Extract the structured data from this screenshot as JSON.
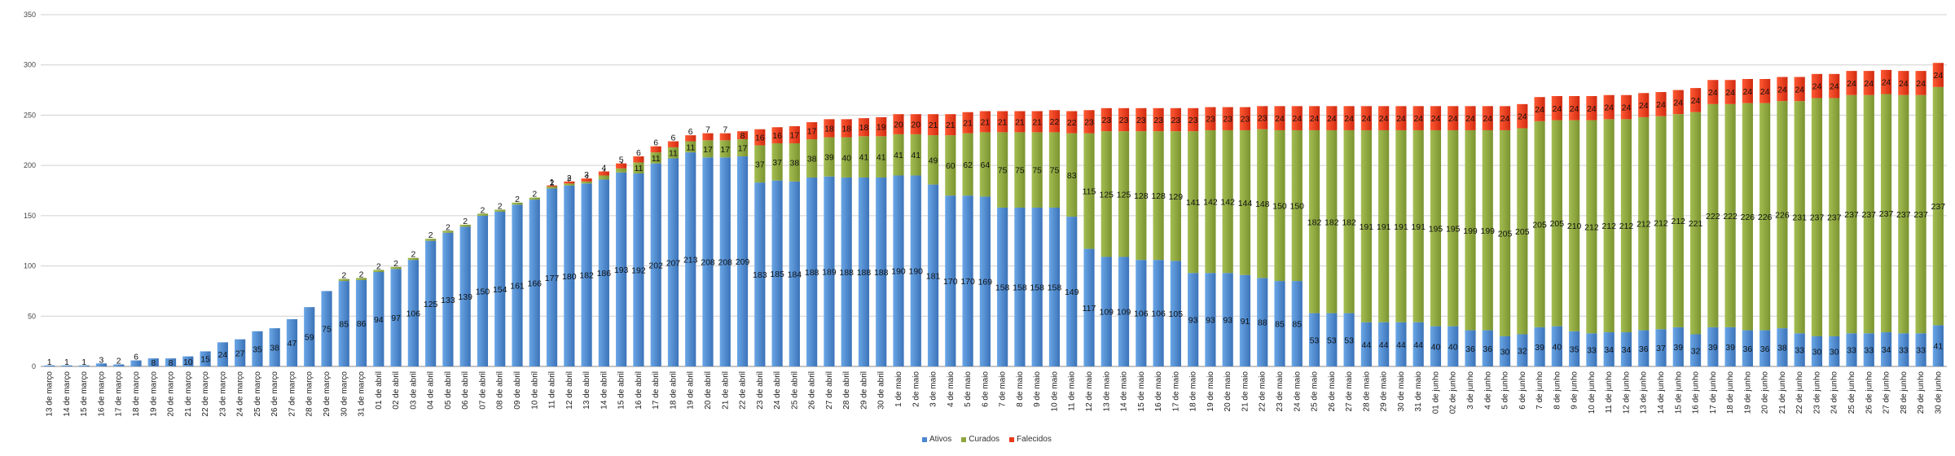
{
  "chart_data": {
    "type": "bar",
    "stacked": true,
    "title": "",
    "xlabel": "",
    "ylabel": "",
    "ylim": [
      0,
      350
    ],
    "yticks": [
      0,
      50,
      100,
      150,
      200,
      250,
      300,
      350
    ],
    "grid": true,
    "legend_position": "bottom",
    "categories": [
      "13 de março",
      "14 de março",
      "15 de março",
      "16 de março",
      "17 de março",
      "18 de março",
      "19 de março",
      "20 de março",
      "21 de março",
      "22 de março",
      "23 de março",
      "24 de março",
      "25 de março",
      "26 de março",
      "27 de março",
      "28 de março",
      "29 de março",
      "30 de março",
      "31 de março",
      "01 de abril",
      "02 de abril",
      "03 de abril",
      "04 de abril",
      "05 de abril",
      "06 de abril",
      "07 de abril",
      "08 de abril",
      "09 de abril",
      "10 de abril",
      "11 de abril",
      "12 de abril",
      "13 de abril",
      "14 de abril",
      "15 de abril",
      "16 de abril",
      "17 de abril",
      "18 de abril",
      "19 de abril",
      "20 de abril",
      "21 de abril",
      "22 de abril",
      "23 de abril",
      "24 de abril",
      "25 de abril",
      "26 de abril",
      "27 de abril",
      "28 de abril",
      "29 de abril",
      "30 de abril",
      "1 de maio",
      "2 de maio",
      "3 de maio",
      "4 de maio",
      "5 de maio",
      "6 de maio",
      "7 de maio",
      "8 de maio",
      "9 de maio",
      "10 de maio",
      "11 de maio",
      "12 de maio",
      "13 de maio",
      "14 de maio",
      "15 de maio",
      "16 de maio",
      "17 de maio",
      "18 de maio",
      "19 de maio",
      "20 de maio",
      "21 de maio",
      "22 de maio",
      "23 de maio",
      "24 de maio",
      "25 de maio",
      "26 de maio",
      "27 de maio",
      "28 de maio",
      "29 de maio",
      "30 de maio",
      "31 de maio",
      "01 de junho",
      "02 de junho",
      "3 de junho",
      "4 de junho",
      "5 de junho",
      "6 de junho",
      "7 de junho",
      "8 de junho",
      "9 de junho",
      "10 de junho",
      "11 de junho",
      "12 de junho",
      "13 de junho",
      "14 de junho",
      "15 de junho",
      "16 de junho",
      "17 de junho",
      "18 de junho",
      "19 de junho",
      "20 de junho",
      "21 de junho",
      "22 de junho",
      "23 de junho",
      "24 de junho",
      "25 de junho",
      "26 de junho",
      "27 de junho",
      "28 de junho",
      "29 de junho",
      "30 de junho"
    ],
    "series": [
      {
        "name": "Ativos",
        "color": "#4a86cf",
        "values": [
          1,
          1,
          1,
          3,
          2,
          6,
          8,
          8,
          10,
          15,
          24,
          27,
          35,
          38,
          47,
          59,
          75,
          85,
          86,
          94,
          97,
          106,
          125,
          133,
          139,
          150,
          154,
          161,
          166,
          177,
          180,
          182,
          186,
          193,
          192,
          202,
          207,
          213,
          208,
          208,
          209,
          183,
          185,
          184,
          188,
          189,
          188,
          188,
          188,
          190,
          190,
          181,
          170,
          170,
          169,
          158,
          158,
          158,
          158,
          149,
          117,
          109,
          109,
          106,
          106,
          105,
          93,
          93,
          93,
          91,
          88,
          85,
          85,
          53,
          53,
          53,
          44,
          44,
          44,
          44,
          40,
          40,
          36,
          36,
          30,
          32,
          39,
          40,
          35,
          33,
          34,
          34,
          36,
          37,
          39,
          32,
          39,
          39,
          36,
          36,
          38,
          33,
          30,
          30,
          33,
          33,
          34,
          33,
          33,
          41
        ]
      },
      {
        "name": "Curados",
        "color": "#8ea63c",
        "values": [
          0,
          0,
          0,
          0,
          0,
          0,
          0,
          0,
          0,
          0,
          0,
          0,
          0,
          0,
          0,
          0,
          0,
          2,
          2,
          2,
          2,
          2,
          2,
          2,
          2,
          2,
          2,
          2,
          2,
          2,
          2,
          2,
          4,
          4,
          11,
          11,
          11,
          11,
          17,
          17,
          17,
          37,
          37,
          38,
          38,
          39,
          40,
          41,
          41,
          41,
          41,
          49,
          60,
          62,
          64,
          75,
          75,
          75,
          75,
          83,
          115,
          125,
          125,
          128,
          128,
          129,
          141,
          142,
          142,
          144,
          148,
          150,
          150,
          182,
          182,
          182,
          191,
          191,
          191,
          191,
          195,
          195,
          199,
          199,
          205,
          205,
          205,
          205,
          210,
          212,
          212,
          212,
          212,
          212,
          212,
          221,
          222,
          222,
          226,
          226,
          226,
          231,
          237,
          237,
          237,
          237,
          237,
          237,
          237,
          237
        ]
      },
      {
        "name": "Falecidos",
        "color": "#e8391a",
        "values": [
          0,
          0,
          0,
          0,
          0,
          0,
          0,
          0,
          0,
          0,
          0,
          0,
          0,
          0,
          0,
          0,
          0,
          0,
          0,
          0,
          0,
          0,
          0,
          0,
          0,
          0,
          0,
          0,
          0,
          1,
          2,
          3,
          4,
          5,
          6,
          6,
          6,
          6,
          7,
          7,
          8,
          16,
          16,
          17,
          17,
          18,
          18,
          18,
          19,
          20,
          20,
          21,
          21,
          21,
          21,
          21,
          21,
          21,
          22,
          22,
          23,
          23,
          23,
          23,
          23,
          23,
          23,
          23,
          23,
          23,
          23,
          24,
          24,
          24,
          24,
          24,
          24,
          24,
          24,
          24,
          24,
          24,
          24,
          24,
          24,
          24,
          24,
          24,
          24,
          24,
          24,
          24,
          24,
          24,
          24,
          24,
          24,
          24,
          24,
          24,
          24,
          24,
          24,
          24,
          24,
          24,
          24,
          24,
          24,
          24
        ]
      }
    ]
  }
}
